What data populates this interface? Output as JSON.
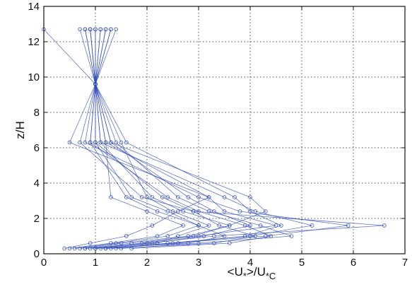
{
  "chart_data": {
    "type": "line",
    "xlabel": "<U*>/U*C",
    "ylabel": "z/H",
    "xlim": [
      0,
      7
    ],
    "ylim": [
      0,
      14
    ],
    "xticks": [
      "0",
      "1",
      "2",
      "3",
      "4",
      "5",
      "6",
      "7"
    ],
    "yticks": [
      "0",
      "2",
      "4",
      "6",
      "8",
      "10",
      "12",
      "14"
    ],
    "grid": true,
    "legend": "none",
    "color": "#2f49b5",
    "marker": "circle",
    "z_levels": [
      0.3,
      0.6,
      1.0,
      1.6,
      2.4,
      3.2,
      6.3,
      9.6,
      12.7
    ],
    "series": [
      {
        "values": [
          0.4,
          0.9,
          1.6,
          2.1,
          2.6,
          3.2,
          0.5,
          1.0,
          0.0
        ]
      },
      {
        "values": [
          0.7,
          1.5,
          2.8,
          3.6,
          4.3,
          4.0,
          1.3,
          1.0,
          1.4
        ]
      },
      {
        "values": [
          1.0,
          2.0,
          3.3,
          6.6,
          2.9,
          2.3,
          1.0,
          1.0,
          0.9
        ]
      },
      {
        "values": [
          1.3,
          2.5,
          4.3,
          5.9,
          3.8,
          3.0,
          0.8,
          1.0,
          0.8
        ]
      },
      {
        "values": [
          0.8,
          1.7,
          3.0,
          4.5,
          3.5,
          3.2,
          1.2,
          1.0,
          1.2
        ]
      },
      {
        "values": [
          1.1,
          2.2,
          2.6,
          3.2,
          2.5,
          2.0,
          1.5,
          1.0,
          1.3
        ]
      },
      {
        "values": [
          0.6,
          1.4,
          2.4,
          3.0,
          2.2,
          1.6,
          0.9,
          1.0,
          0.7
        ]
      },
      {
        "values": [
          1.5,
          3.0,
          4.8,
          4.2,
          3.2,
          2.6,
          1.4,
          1.0,
          1.1
        ]
      },
      {
        "values": [
          1.2,
          2.6,
          3.9,
          4.6,
          4.0,
          3.7,
          1.6,
          1.0,
          1.0
        ]
      },
      {
        "values": [
          0.9,
          1.9,
          2.9,
          3.6,
          2.7,
          2.1,
          1.1,
          1.0,
          0.9
        ]
      },
      {
        "values": [
          1.4,
          3.3,
          4.1,
          3.4,
          2.9,
          1.9,
          0.7,
          1.0,
          1.2
        ]
      },
      {
        "values": [
          0.5,
          1.3,
          2.2,
          2.7,
          2.0,
          1.3,
          1.2,
          1.0,
          1.0
        ]
      },
      {
        "values": [
          1.7,
          3.6,
          4.4,
          3.9,
          3.0,
          2.4,
          0.9,
          1.0,
          0.8
        ]
      },
      {
        "values": [
          0.8,
          2.1,
          3.1,
          4.0,
          3.3,
          2.8,
          1.3,
          1.0,
          1.1
        ]
      },
      {
        "values": [
          1.0,
          2.8,
          3.5,
          3.0,
          2.4,
          1.7,
          1.0,
          1.0,
          1.3
        ]
      },
      {
        "values": [
          1.2,
          2.4,
          4.0,
          5.2,
          4.1,
          3.5,
          1.1,
          1.0,
          0.9
        ]
      }
    ]
  }
}
